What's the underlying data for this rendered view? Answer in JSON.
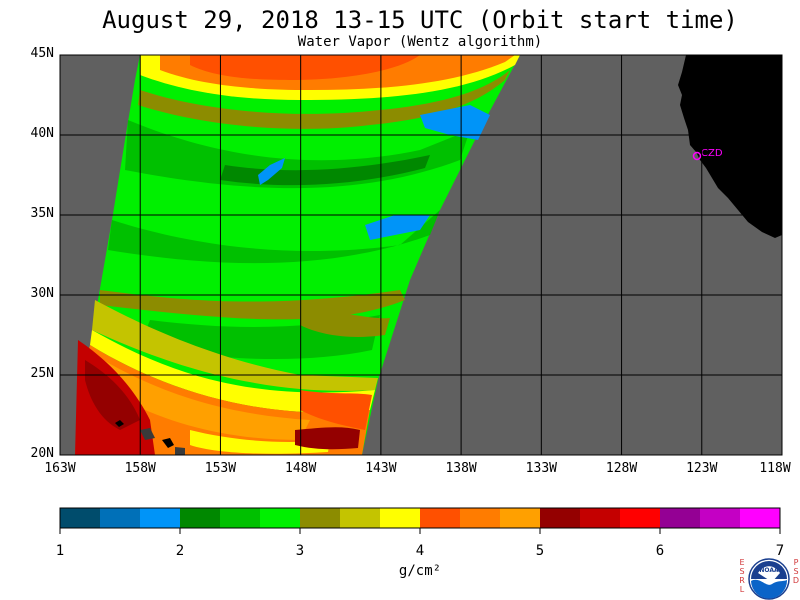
{
  "title": "August 29, 2018  13-15 UTC  (Orbit start time)",
  "subtitle": "Water Vapor (Wentz algorithm)",
  "map": {
    "lon_min": -163,
    "lon_max": -118,
    "lat_min": 20,
    "lat_max": 45,
    "lat_labels": [
      "45N",
      "40N",
      "35N",
      "30N",
      "25N",
      "20N"
    ],
    "lon_labels": [
      "163W",
      "158W",
      "153W",
      "148W",
      "143W",
      "138W",
      "133W",
      "128W",
      "123W",
      "118W"
    ],
    "station_label": "CZD",
    "colors": {
      "no_data": "#606060",
      "land": "#000000",
      "station": "#ff00ff",
      "grid": "#000000"
    }
  },
  "colorbar": {
    "ticks": [
      "1",
      "2",
      "3",
      "4",
      "5",
      "6",
      "7"
    ],
    "unit": "g/cm²",
    "colors": [
      "#004c6c",
      "#0070b8",
      "#0094f8",
      "#008800",
      "#00c000",
      "#00f000",
      "#8c8c00",
      "#c4c400",
      "#ffff00",
      "#ff5000",
      "#ff7c00",
      "#ffa000",
      "#940000",
      "#c40000",
      "#ff0000",
      "#940094",
      "#c400c4",
      "#ff00ff"
    ]
  },
  "logo": {
    "text": "NOAA",
    "left_letters": [
      "E",
      "S",
      "R",
      "L"
    ],
    "right_letters": [
      "P",
      "S",
      "D"
    ]
  }
}
